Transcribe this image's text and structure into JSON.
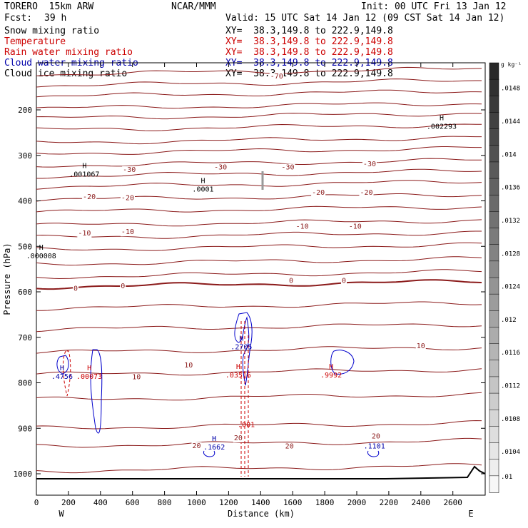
{
  "header": {
    "model": "TORERO  15km ARW",
    "center": "NCAR/MMM",
    "init": "Init: 00 UTC Fri 13 Jan 12",
    "fcst_label": "Fcst:",
    "fcst_value": "39 h",
    "valid": "Valid: 15 UTC Sat 14 Jan 12 (09 CST Sat 14 Jan 12)"
  },
  "fields": [
    {
      "name": "Snow mixing ratio",
      "xy": "XY=  38.3,149.8 to 222.9,149.8",
      "color": "#000000",
      "xy_color": "#000000"
    },
    {
      "name": "Temperature",
      "xy": "XY=  38.3,149.8 to 222.9,149.8",
      "color": "#cc0000",
      "xy_color": "#cc0000"
    },
    {
      "name": "Rain water mixing ratio",
      "xy": "XY=  38.3,149.8 to 222.9,149.8",
      "color": "#cc0000",
      "xy_color": "#cc0000"
    },
    {
      "name": "Cloud water mixing ratio",
      "xy": "XY=  38.3,149.8 to 222.9,149.8",
      "color": "#0000aa",
      "xy_color": "#0000aa"
    },
    {
      "name": "Cloud ice mixing ratio",
      "xy": "XY=  38.3,149.8 to 222.9,149.8",
      "color": "#000000",
      "xy_color": "#000000"
    }
  ],
  "chart_data": {
    "type": "contour",
    "xlabel": "Distance (km)",
    "ylabel": "Pressure (hPa)",
    "xlim": [
      0,
      2800
    ],
    "ylim": [
      1050,
      100
    ],
    "x_ticks": [
      0,
      200,
      400,
      600,
      800,
      1000,
      1200,
      1400,
      1600,
      1800,
      2000,
      2200,
      2400,
      2600
    ],
    "y_ticks": [
      200,
      300,
      400,
      500,
      600,
      700,
      800,
      900,
      1000
    ],
    "x_left_label": "W",
    "x_right_label": "E",
    "isotherm_color": "#8b1a1a",
    "isotherm_labels": [
      {
        "text": "-70",
        "x": 1500,
        "p": 125
      },
      {
        "text": "-30",
        "x": 580,
        "p": 330
      },
      {
        "text": "-30",
        "x": 1150,
        "p": 325
      },
      {
        "text": "-30",
        "x": 1570,
        "p": 325
      },
      {
        "text": "-30",
        "x": 2080,
        "p": 318
      },
      {
        "text": "-20",
        "x": 330,
        "p": 390
      },
      {
        "text": "-20",
        "x": 570,
        "p": 392
      },
      {
        "text": "-20",
        "x": 1760,
        "p": 380
      },
      {
        "text": "-20",
        "x": 2060,
        "p": 380
      },
      {
        "text": "-10",
        "x": 300,
        "p": 470
      },
      {
        "text": "-10",
        "x": 570,
        "p": 467
      },
      {
        "text": "-10",
        "x": 1660,
        "p": 455
      },
      {
        "text": "-10",
        "x": 1990,
        "p": 455
      },
      {
        "text": "0",
        "x": 245,
        "p": 591
      },
      {
        "text": "0",
        "x": 540,
        "p": 586
      },
      {
        "text": "0",
        "x": 1590,
        "p": 574
      },
      {
        "text": "0",
        "x": 1920,
        "p": 574
      },
      {
        "text": "10",
        "x": 625,
        "p": 786
      },
      {
        "text": "10",
        "x": 950,
        "p": 760
      },
      {
        "text": "10",
        "x": 2400,
        "p": 718
      },
      {
        "text": "20",
        "x": 1000,
        "p": 937
      },
      {
        "text": "20",
        "x": 1260,
        "p": 920
      },
      {
        "text": "20",
        "x": 1580,
        "p": 938
      },
      {
        "text": "20",
        "x": 2120,
        "p": 916
      }
    ],
    "extrema": [
      {
        "symbol": "H",
        "value": ".001067",
        "x": 300,
        "p": 340,
        "color": "#000000"
      },
      {
        "symbol": "H",
        "value": ".0001",
        "x": 1040,
        "p": 373,
        "color": "#000000"
      },
      {
        "symbol": "H",
        "value": ".002293",
        "x": 2530,
        "p": 235,
        "color": "#000000"
      },
      {
        "symbol": "H",
        "value": ".000008",
        "x": 30,
        "p": 520,
        "color": "#000000"
      },
      {
        "symbol": "H",
        "value": ".4756",
        "x": 160,
        "p": 785,
        "color": "#0000aa"
      },
      {
        "symbol": "H",
        "value": ".00073",
        "x": 330,
        "p": 785,
        "color": "#cc0000"
      },
      {
        "symbol": "H",
        "value": ".2705",
        "x": 1280,
        "p": 720,
        "color": "#0000aa"
      },
      {
        "symbol": "H",
        "value": ".03516",
        "x": 1260,
        "p": 782,
        "color": "#cc0000"
      },
      {
        "symbol": "H",
        "value": ".9992",
        "x": 1840,
        "p": 782,
        "color": "#cc0000"
      },
      {
        "symbol": "H",
        "value": ".1662",
        "x": 1110,
        "p": 940,
        "color": "#0000aa"
      },
      {
        "symbol": "H",
        "value": ".1101",
        "x": 2110,
        "p": 938,
        "color": "#0000aa"
      }
    ],
    "rain_labels": [
      {
        "text": ".001",
        "x": 1310,
        "p": 897
      }
    ],
    "colorbar": {
      "unit": "g kg⁻¹",
      "labels": [
        ".0148",
        ".0144",
        ".014",
        ".0136",
        ".0132",
        ".0128",
        ".0124",
        ".012",
        ".0116",
        ".0112",
        ".0108",
        ".0104",
        ".01"
      ]
    }
  }
}
